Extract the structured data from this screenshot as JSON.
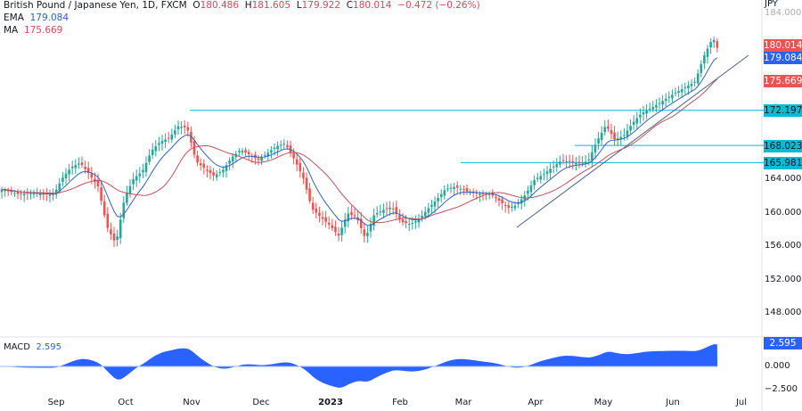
{
  "header": {
    "title": "British Pound / Japanese Yen, 1D, FXCM",
    "open_label": "O",
    "open": "180.486",
    "high_label": "H",
    "high": "181.605",
    "low_label": "L",
    "low": "179.922",
    "close_label": "C",
    "close": "180.014",
    "change": "−0.472 (−0.26%)"
  },
  "indicators": {
    "ema_label": "EMA",
    "ema": "179.084",
    "ma_label": "MA",
    "ma": "175.669",
    "macd_label": "MACD",
    "macd": "2.595"
  },
  "colors": {
    "up": "#26a69a",
    "down": "#ef5350",
    "ema": "#2e62c4",
    "ma": "#c0505a",
    "level": "#00bcd4",
    "macd": "#2962ff",
    "trend": "#4a5e8a"
  },
  "chart_data": {
    "type": "candlestick",
    "currency": "JPY",
    "yticks": [
      "184.000",
      "164.000",
      "160.000",
      "156.000",
      "152.000",
      "148.000"
    ],
    "macd_ticks": [
      "0.000",
      "−2.500"
    ],
    "xticks": [
      "Sep",
      "Oct",
      "Nov",
      "Dec",
      "2023",
      "Feb",
      "Mar",
      "Apr",
      "May",
      "Jun",
      "Jul"
    ],
    "closes": [
      163,
      162.5,
      162,
      161.9,
      161.8,
      161.8,
      161.8,
      164,
      165.5,
      166.2,
      165,
      163.6,
      158.8,
      156.6,
      162,
      164,
      164.7,
      167,
      168,
      168.5,
      170,
      170,
      166.2,
      165.5,
      164.8,
      165.5,
      167,
      167.8,
      167,
      166.2,
      166.8,
      167.5,
      167.8,
      166,
      164,
      160.4,
      159.6,
      158.8,
      157.7,
      160.4,
      159.9,
      157.2,
      159.9,
      160.2,
      160.4,
      158.5,
      158.2,
      158.8,
      160.2,
      161.5,
      163,
      163.4,
      163.2,
      162.8,
      162.6,
      162.5,
      161.5,
      160.4,
      160.6,
      161.8,
      163.5,
      164.2,
      165.2,
      166.2,
      166.2,
      166.2,
      166.6,
      169,
      170.8,
      168.9,
      169.2,
      170.5,
      171.5,
      172,
      172.6,
      173.4,
      174.2,
      175,
      175.8,
      179,
      181.3,
      180.014
    ],
    "levels": [
      "172.197",
      "168.023",
      "165.981"
    ],
    "last": {
      "close": "180.014",
      "ema": "179.084",
      "ma": "175.669",
      "macd": "2.595"
    }
  }
}
